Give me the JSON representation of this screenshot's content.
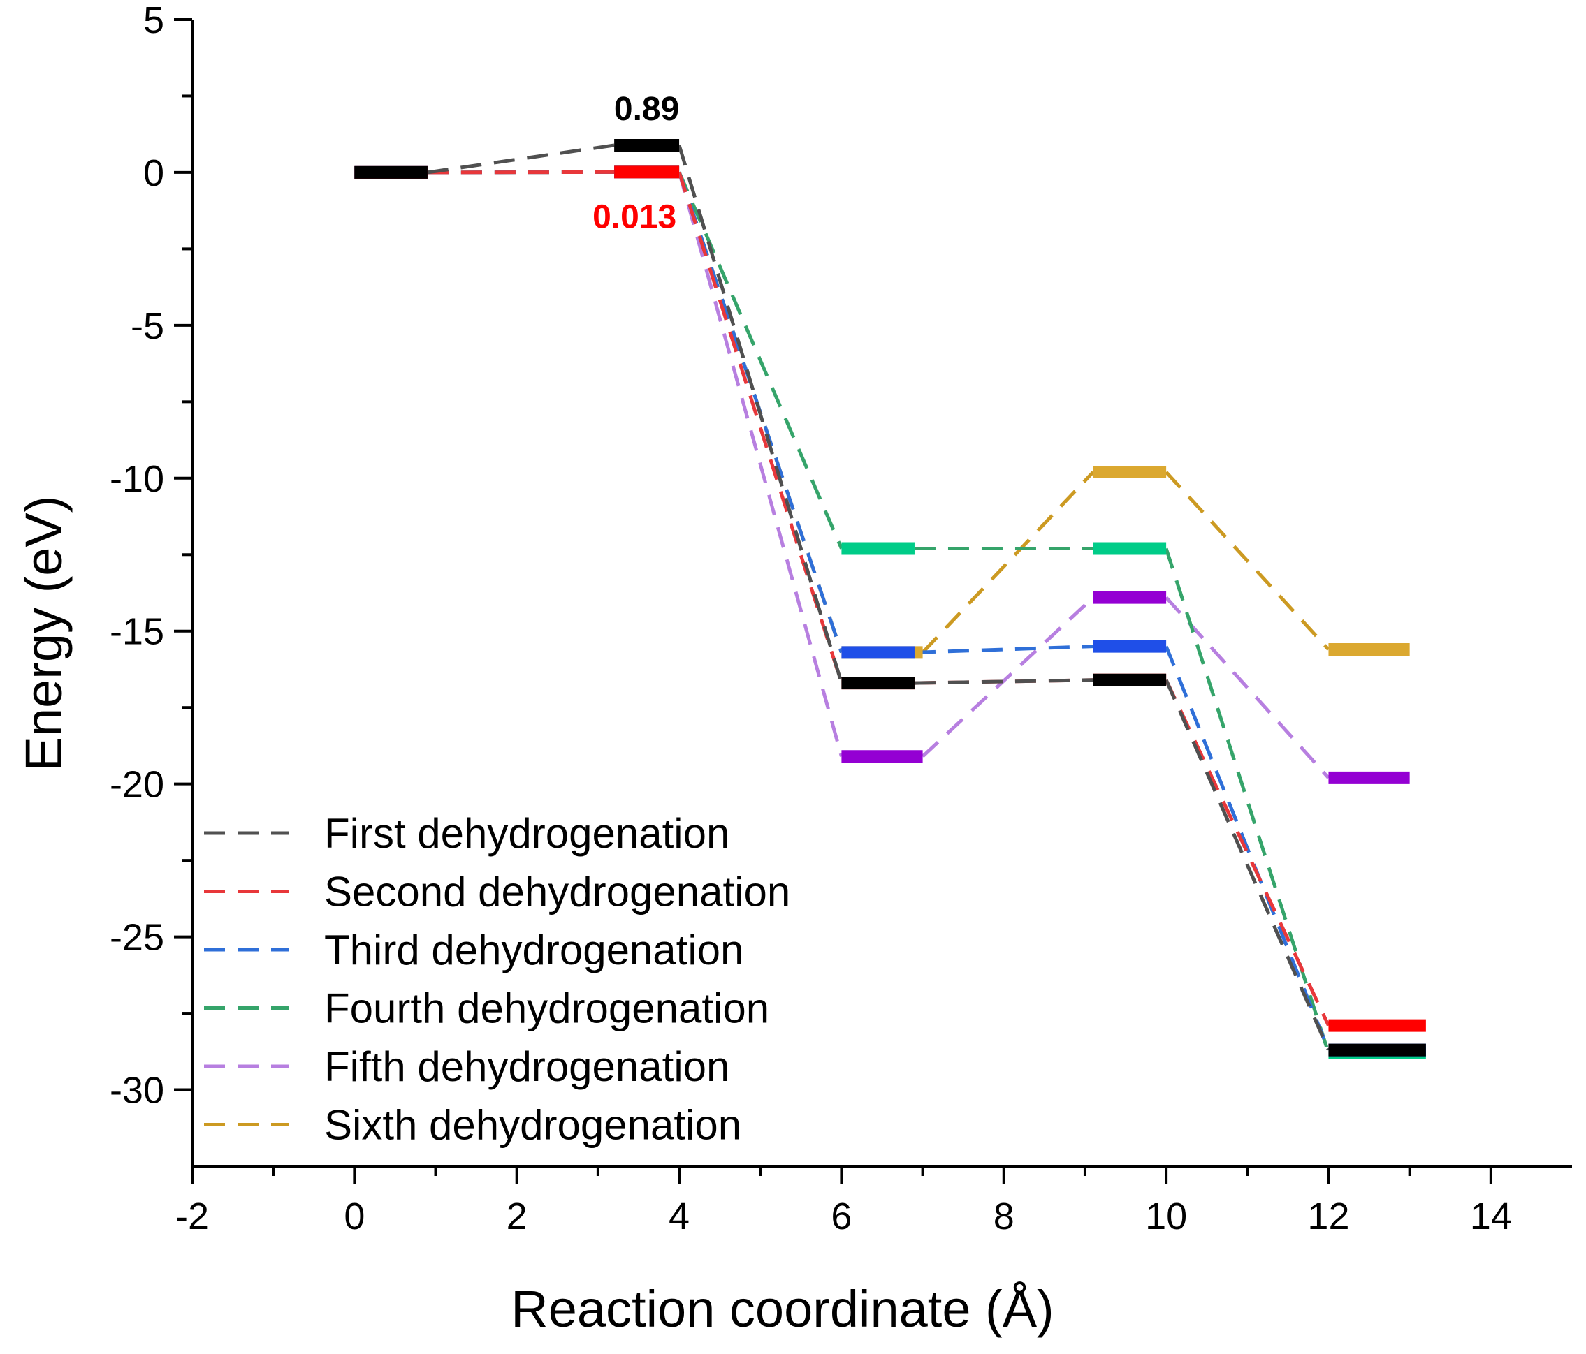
{
  "chart_data": {
    "type": "line",
    "title": "",
    "xlabel": "Reaction coordinate (Å)",
    "ylabel": "Energy (eV)",
    "xlim": [
      -2,
      15
    ],
    "ylim": [
      -32.5,
      5
    ],
    "x_ticks": [
      -2,
      0,
      2,
      4,
      6,
      8,
      10,
      12,
      14
    ],
    "y_ticks": [
      5,
      0,
      -5,
      -10,
      -15,
      -20,
      -25,
      -30
    ],
    "x_tick_labels": [
      "-2",
      "0",
      "2",
      "4",
      "6",
      "8",
      "10",
      "12",
      "14"
    ],
    "y_tick_labels": [
      "5",
      "0",
      "-5",
      "-10",
      "-15",
      "-20",
      "-25",
      "-30"
    ],
    "legend_position": "bottom-left",
    "series": [
      {
        "name": "First dehydrogenation",
        "line_color": "#505050",
        "level_color": "#000000",
        "levels": [
          {
            "x_start": 0,
            "x_end": 0.9,
            "energy": 0
          },
          {
            "x_start": 3.2,
            "x_end": 4.0,
            "energy": 0.89
          },
          {
            "x_start": 6.0,
            "x_end": 6.9,
            "energy": -16.7
          },
          {
            "x_start": 9.1,
            "x_end": 10.0,
            "energy": -16.6
          },
          {
            "x_start": 12.0,
            "x_end": 13.2,
            "energy": -28.7
          }
        ]
      },
      {
        "name": "Second dehydrogenation",
        "line_color": "#e8373a",
        "level_color": "#ff0000",
        "levels": [
          {
            "x_start": 0,
            "x_end": 0.9,
            "energy": 0
          },
          {
            "x_start": 3.2,
            "x_end": 4.0,
            "energy": 0.013
          },
          {
            "x_start": 6.0,
            "x_end": 6.9,
            "energy": -16.7
          },
          {
            "x_start": 9.1,
            "x_end": 10.0,
            "energy": -16.6
          },
          {
            "x_start": 12.0,
            "x_end": 13.2,
            "energy": -27.9
          }
        ]
      },
      {
        "name": "Third dehydrogenation",
        "line_color": "#2f6fd8",
        "level_color": "#1f4fe8",
        "levels": [
          {
            "x_start": 0,
            "x_end": 0.9,
            "energy": 0
          },
          {
            "x_start": 3.2,
            "x_end": 4.0,
            "energy": 0.013
          },
          {
            "x_start": 6.0,
            "x_end": 6.9,
            "energy": -15.7
          },
          {
            "x_start": 9.1,
            "x_end": 10.0,
            "energy": -15.5
          },
          {
            "x_start": 12.0,
            "x_end": 13.2,
            "energy": -28.7
          }
        ]
      },
      {
        "name": "Fourth dehydrogenation",
        "line_color": "#35a46a",
        "level_color": "#00cc88",
        "levels": [
          {
            "x_start": 0,
            "x_end": 0.9,
            "energy": 0
          },
          {
            "x_start": 3.2,
            "x_end": 4.0,
            "energy": 0.013
          },
          {
            "x_start": 6.0,
            "x_end": 6.9,
            "energy": -12.3
          },
          {
            "x_start": 9.1,
            "x_end": 10.0,
            "energy": -12.3
          },
          {
            "x_start": 12.0,
            "x_end": 13.2,
            "energy": -28.8
          }
        ]
      },
      {
        "name": "Fifth dehydrogenation",
        "line_color": "#b77fe0",
        "level_color": "#9400d3",
        "levels": [
          {
            "x_start": 0,
            "x_end": 0.9,
            "energy": 0
          },
          {
            "x_start": 3.2,
            "x_end": 4.0,
            "energy": 0.013
          },
          {
            "x_start": 6.0,
            "x_end": 7.0,
            "energy": -19.1
          },
          {
            "x_start": 9.1,
            "x_end": 10.0,
            "energy": -13.9
          },
          {
            "x_start": 12.0,
            "x_end": 13.0,
            "energy": -19.8
          }
        ]
      },
      {
        "name": "Sixth dehydrogenation",
        "line_color": "#cc9a22",
        "level_color": "#dba830",
        "levels": [
          {
            "x_start": 0,
            "x_end": 0.9,
            "energy": 0
          },
          {
            "x_start": 3.2,
            "x_end": 4.0,
            "energy": 0.013
          },
          {
            "x_start": 6.0,
            "x_end": 7.0,
            "energy": -15.7
          },
          {
            "x_start": 9.1,
            "x_end": 10.0,
            "energy": -9.8
          },
          {
            "x_start": 12.0,
            "x_end": 13.0,
            "energy": -15.6
          }
        ]
      }
    ],
    "annotations": [
      {
        "text": "0.89",
        "x": 3.6,
        "y": 0.89,
        "color": "#000000",
        "placement": "above"
      },
      {
        "text": "0.013",
        "x": 3.45,
        "y": 0.013,
        "color": "#ff0000",
        "placement": "below"
      }
    ]
  }
}
